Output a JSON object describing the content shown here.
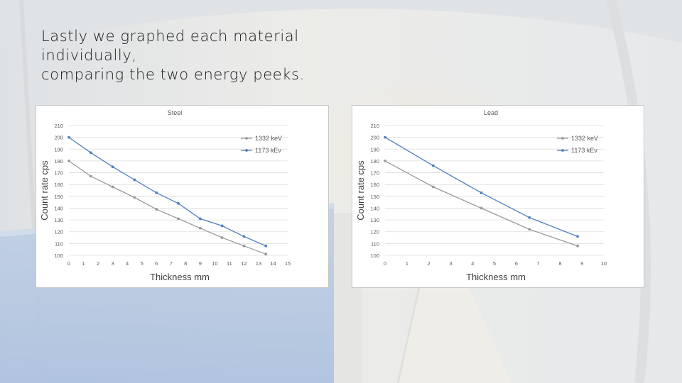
{
  "slide": {
    "title_lines": [
      "Lastly we graphed each material",
      "individually,",
      "comparing the two energy peeks."
    ]
  },
  "colors": {
    "series_1332": "#9a9a9a",
    "series_1173": "#4e7fc0",
    "gridline": "#dcdcdc",
    "axis_text": "#595959",
    "panel_border": "#c8c8c8"
  },
  "chart_data": [
    {
      "type": "line",
      "title": "Steel",
      "xlabel": "Thickness mm",
      "ylabel": "Count rate cps",
      "xlim": [
        0,
        15
      ],
      "ylim": [
        100,
        210
      ],
      "xticks": [
        0,
        1,
        2,
        3,
        4,
        5,
        6,
        7,
        8,
        9,
        10,
        11,
        12,
        13,
        14,
        15
      ],
      "yticks": [
        100,
        110,
        120,
        130,
        140,
        150,
        160,
        170,
        180,
        190,
        200,
        210
      ],
      "grid": "horizontal",
      "legend_position": "top-right",
      "series": [
        {
          "name": "1332 keV",
          "x": [
            0,
            1.5,
            3,
            4.5,
            6,
            7.5,
            9,
            10.5,
            12,
            13.5
          ],
          "y": [
            180,
            167,
            158,
            149,
            139,
            131,
            123,
            115,
            108,
            101
          ]
        },
        {
          "name": "1173 kEv",
          "x": [
            0,
            1.5,
            3,
            4.5,
            6,
            7.5,
            9,
            10.5,
            12,
            13.5
          ],
          "y": [
            200,
            187,
            175,
            164,
            153,
            144,
            131,
            125,
            116,
            108
          ]
        }
      ]
    },
    {
      "type": "line",
      "title": "Lead",
      "xlabel": "Thickness mm",
      "ylabel": "Count rate cps",
      "xlim": [
        0,
        10
      ],
      "ylim": [
        100,
        210
      ],
      "xticks": [
        0,
        1,
        2,
        3,
        4,
        5,
        6,
        7,
        8,
        9,
        10
      ],
      "yticks": [
        100,
        110,
        120,
        130,
        140,
        150,
        160,
        170,
        180,
        190,
        200,
        210
      ],
      "grid": "horizontal",
      "legend_position": "top-right",
      "series": [
        {
          "name": "1332 keV",
          "x": [
            0,
            2.2,
            4.4,
            6.6,
            8.8
          ],
          "y": [
            180,
            158,
            140,
            122,
            108
          ]
        },
        {
          "name": "1173 kEv",
          "x": [
            0,
            2.2,
            4.4,
            6.6,
            8.8
          ],
          "y": [
            200,
            176,
            153,
            132,
            116
          ]
        }
      ]
    }
  ]
}
